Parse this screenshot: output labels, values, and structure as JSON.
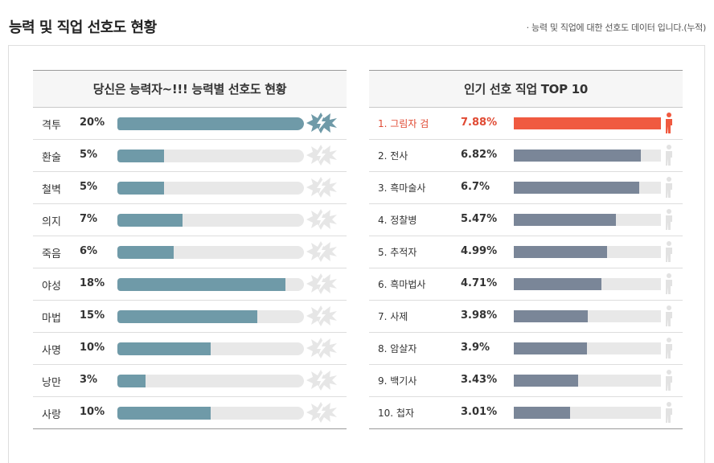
{
  "page": {
    "title": "능력 및 직업 선호도 현황",
    "note": "· 능력 및 직업에 대한 선호도 데이터 입니다.(누적)"
  },
  "abilities": {
    "title": "당신은 능력자~!!! 능력별 선호도 현황",
    "items": [
      {
        "name": "격투",
        "pct": "20%",
        "value": 20
      },
      {
        "name": "환술",
        "pct": "5%",
        "value": 5
      },
      {
        "name": "철벽",
        "pct": "5%",
        "value": 5
      },
      {
        "name": "의지",
        "pct": "7%",
        "value": 7
      },
      {
        "name": "죽음",
        "pct": "6%",
        "value": 6
      },
      {
        "name": "야성",
        "pct": "18%",
        "value": 18
      },
      {
        "name": "마법",
        "pct": "15%",
        "value": 15
      },
      {
        "name": "사명",
        "pct": "10%",
        "value": 10
      },
      {
        "name": "낭만",
        "pct": "3%",
        "value": 3
      },
      {
        "name": "사랑",
        "pct": "10%",
        "value": 10
      }
    ]
  },
  "jobs": {
    "title": "인기 선호 직업 TOP 10",
    "items": [
      {
        "name": "1. 그림자 검",
        "pct": "7.88%",
        "value": 7.88
      },
      {
        "name": "2. 전사",
        "pct": "6.82%",
        "value": 6.82
      },
      {
        "name": "3. 흑마술사",
        "pct": "6.7%",
        "value": 6.7
      },
      {
        "name": "4. 정찰병",
        "pct": "5.47%",
        "value": 5.47
      },
      {
        "name": "5. 추적자",
        "pct": "4.99%",
        "value": 4.99
      },
      {
        "name": "6. 흑마법사",
        "pct": "4.71%",
        "value": 4.71
      },
      {
        "name": "7. 사제",
        "pct": "3.98%",
        "value": 3.98
      },
      {
        "name": "8. 암살자",
        "pct": "3.9%",
        "value": 3.9
      },
      {
        "name": "9. 백기사",
        "pct": "3.43%",
        "value": 3.43
      },
      {
        "name": "10. 첩자",
        "pct": "3.01%",
        "value": 3.01
      }
    ]
  },
  "colors": {
    "ability_bar": "#6f9aa8",
    "job_bar": "#7a8698",
    "top_job": "#f05a40",
    "track": "#e8e8e8",
    "burst_active": "#6f9aa8",
    "burst_inactive": "#e6e6e6"
  },
  "icons": {
    "ability_marker": "lightning-burst-icon",
    "job_marker": "person-icon"
  }
}
